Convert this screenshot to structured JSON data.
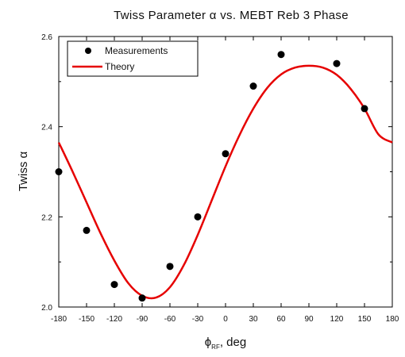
{
  "chart_data": {
    "type": "scatter",
    "title": "Twiss Parameter α vs. MEBT Reb 3 Phase",
    "xlabel_main": "ϕ",
    "xlabel_sub": "RF",
    "xlabel_rest": ", deg",
    "ylabel": "Twiss α",
    "xlim": [
      -180,
      180
    ],
    "ylim": [
      2.0,
      2.6
    ],
    "xticks": [
      -180,
      -150,
      -120,
      -90,
      -60,
      -30,
      0,
      30,
      60,
      90,
      120,
      150,
      180
    ],
    "xtick_labels": [
      "-180",
      "-150",
      "-120",
      "-90",
      "-60",
      "-30",
      "0",
      "30",
      "60",
      "90",
      "120",
      "150",
      "180"
    ],
    "yticks": [
      2.0,
      2.2,
      2.4,
      2.6
    ],
    "ytick_labels": [
      "2.0",
      "2.2",
      "2.4",
      "2.6"
    ],
    "legend_position": "top-left",
    "series": [
      {
        "name": "Measurements",
        "kind": "scatter",
        "color": "#000000",
        "x": [
          -180,
          -150,
          -120,
          -90,
          -60,
          -30,
          0,
          30,
          60,
          120,
          150
        ],
        "y": [
          2.3,
          2.17,
          2.05,
          2.02,
          2.09,
          2.2,
          2.34,
          2.49,
          2.56,
          2.54,
          2.44
        ]
      },
      {
        "name": "Theory",
        "kind": "line",
        "color": "#e60000",
        "x": [
          -180,
          -165,
          -150,
          -135,
          -120,
          -105,
          -90,
          -75,
          -60,
          -45,
          -30,
          -15,
          0,
          15,
          30,
          45,
          60,
          75,
          90,
          105,
          120,
          135,
          150,
          165,
          180
        ],
        "y": [
          2.365,
          2.3,
          2.232,
          2.164,
          2.103,
          2.053,
          2.025,
          2.021,
          2.044,
          2.093,
          2.16,
          2.236,
          2.312,
          2.381,
          2.44,
          2.486,
          2.516,
          2.531,
          2.535,
          2.531,
          2.515,
          2.484,
          2.44,
          2.383,
          2.365
        ]
      }
    ]
  }
}
